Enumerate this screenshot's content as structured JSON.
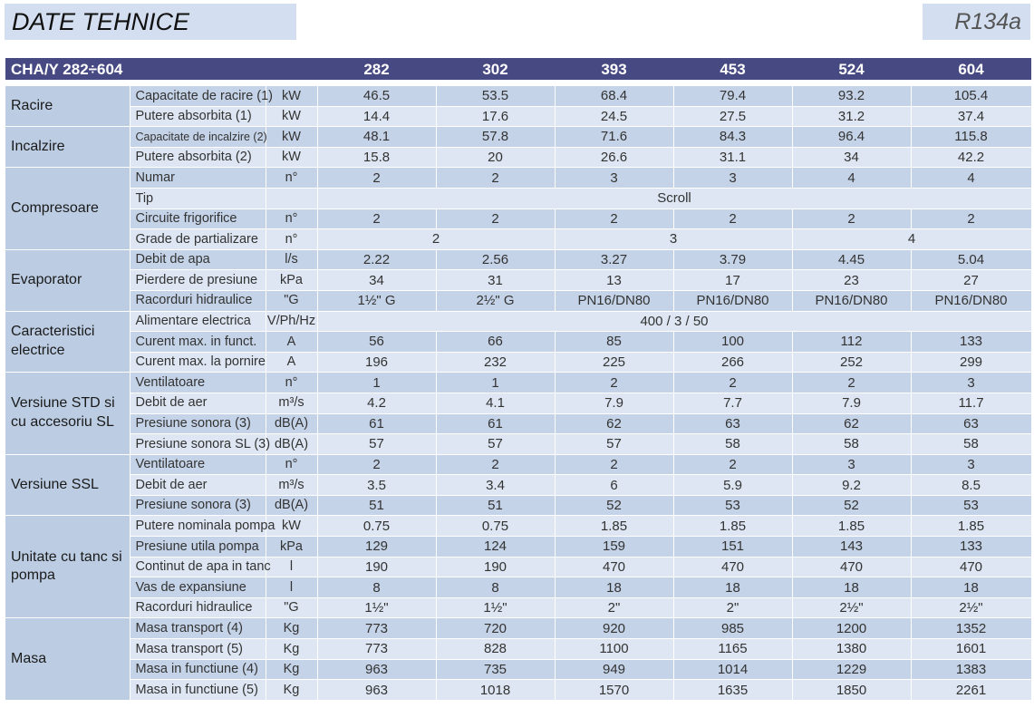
{
  "header": {
    "title": "DATE TEHNICE",
    "refrigerant": "R134a"
  },
  "table": {
    "model_label": "CHA/Y 282÷604",
    "models": [
      "282",
      "302",
      "393",
      "453",
      "524",
      "604"
    ],
    "r_racire": {
      "group": "Racire",
      "capacitate": {
        "label": "Capacitate de racire (1)",
        "unit": "kW",
        "values": [
          "46.5",
          "53.5",
          "68.4",
          "79.4",
          "93.2",
          "105.4"
        ]
      },
      "putere": {
        "label": "Putere absorbita (1)",
        "unit": "kW",
        "values": [
          "14.4",
          "17.6",
          "24.5",
          "27.5",
          "31.2",
          "37.4"
        ]
      }
    },
    "r_incalzire": {
      "group": "Incalzire",
      "capacitate": {
        "label": "Capacitate de incalzire (2)",
        "unit": "kW",
        "values": [
          "48.1",
          "57.8",
          "71.6",
          "84.3",
          "96.4",
          "115.8"
        ]
      },
      "putere": {
        "label": "Putere absorbita (2)",
        "unit": "kW",
        "values": [
          "15.8",
          "20",
          "26.6",
          "31.1",
          "34",
          "42.2"
        ]
      }
    },
    "r_compresoare": {
      "group": "Compresoare",
      "numar": {
        "label": "Numar",
        "unit": "n°",
        "values": [
          "2",
          "2",
          "3",
          "3",
          "4",
          "4"
        ]
      },
      "tip": {
        "label": "Tip",
        "unit": "",
        "value": "Scroll"
      },
      "circuite": {
        "label": "Circuite frigorifice",
        "unit": "n°",
        "values": [
          "2",
          "2",
          "2",
          "2",
          "2",
          "2"
        ]
      },
      "grade": {
        "label": "Grade de partializare",
        "unit": "n°",
        "values": [
          "2",
          "3",
          "4"
        ]
      }
    },
    "r_evaporator": {
      "group": "Evaporator",
      "debit": {
        "label": "Debit de apa",
        "unit": "l/s",
        "values": [
          "2.22",
          "2.56",
          "3.27",
          "3.79",
          "4.45",
          "5.04"
        ]
      },
      "pierdere": {
        "label": "Pierdere de presiune",
        "unit": "kPa",
        "values": [
          "34",
          "31",
          "13",
          "17",
          "23",
          "27"
        ]
      },
      "racorduri": {
        "label": "Racorduri hidraulice",
        "unit": "\"G",
        "values": [
          "1½\" G",
          "2½\" G",
          "PN16/DN80",
          "PN16/DN80",
          "PN16/DN80",
          "PN16/DN80"
        ]
      }
    },
    "r_electrice": {
      "group": "Caracteristici electrice",
      "alimentare": {
        "label": "Alimentare electrica",
        "unit": "V/Ph/Hz",
        "value": "400 / 3 / 50"
      },
      "curent_funct": {
        "label": "Curent max. in funct.",
        "unit": "A",
        "values": [
          "56",
          "66",
          "85",
          "100",
          "112",
          "133"
        ]
      },
      "curent_pornire": {
        "label": "Curent max. la pornire",
        "unit": "A",
        "values": [
          "196",
          "232",
          "225",
          "266",
          "252",
          "299"
        ]
      }
    },
    "r_std": {
      "group": "Versiune STD si cu accesoriu SL",
      "ventilatoare": {
        "label": "Ventilatoare",
        "unit": "n°",
        "values": [
          "1",
          "1",
          "2",
          "2",
          "2",
          "3"
        ]
      },
      "debit_aer": {
        "label": "Debit de aer",
        "unit": "m³/s",
        "values": [
          "4.2",
          "4.1",
          "7.9",
          "7.7",
          "7.9",
          "11.7"
        ]
      },
      "sonora": {
        "label": "Presiune sonora (3)",
        "unit": "dB(A)",
        "values": [
          "61",
          "61",
          "62",
          "63",
          "62",
          "63"
        ]
      },
      "sonora_sl": {
        "label": "Presiune sonora SL (3)",
        "unit": "dB(A)",
        "values": [
          "57",
          "57",
          "57",
          "58",
          "58",
          "58"
        ]
      }
    },
    "r_ssl": {
      "group": "Versiune SSL",
      "ventilatoare": {
        "label": "Ventilatoare",
        "unit": "n°",
        "values": [
          "2",
          "2",
          "2",
          "2",
          "3",
          "3"
        ]
      },
      "debit_aer": {
        "label": "Debit de aer",
        "unit": "m³/s",
        "values": [
          "3.5",
          "3.4",
          "6",
          "5.9",
          "9.2",
          "8.5"
        ]
      },
      "sonora": {
        "label": "Presiune sonora (3)",
        "unit": "dB(A)",
        "values": [
          "51",
          "51",
          "52",
          "53",
          "52",
          "53"
        ]
      }
    },
    "r_pompa": {
      "group": "Unitate cu tanc si pompa",
      "putere": {
        "label": "Putere nominala pompa",
        "unit": "kW",
        "values": [
          "0.75",
          "0.75",
          "1.85",
          "1.85",
          "1.85",
          "1.85"
        ]
      },
      "presiune": {
        "label": "Presiune utila pompa",
        "unit": "kPa",
        "values": [
          "129",
          "124",
          "159",
          "151",
          "143",
          "133"
        ]
      },
      "continut": {
        "label": "Continut de apa in tanc",
        "unit": "l",
        "values": [
          "190",
          "190",
          "470",
          "470",
          "470",
          "470"
        ]
      },
      "vas": {
        "label": "Vas de expansiune",
        "unit": "l",
        "values": [
          "8",
          "8",
          "18",
          "18",
          "18",
          "18"
        ]
      },
      "racorduri": {
        "label": "Racorduri hidraulice",
        "unit": "\"G",
        "values": [
          "1½\"",
          "1½\"",
          "2\"",
          "2\"",
          "2½\"",
          "2½\""
        ]
      }
    },
    "r_masa": {
      "group": "Masa",
      "transport4": {
        "label": "Masa transport (4)",
        "unit": "Kg",
        "values": [
          "773",
          "720",
          "920",
          "985",
          "1200",
          "1352"
        ]
      },
      "transport5": {
        "label": "Masa transport (5)",
        "unit": "Kg",
        "values": [
          "773",
          "828",
          "1100",
          "1165",
          "1380",
          "1601"
        ]
      },
      "functiune4": {
        "label": "Masa in functiune (4)",
        "unit": "Kg",
        "values": [
          "963",
          "735",
          "949",
          "1014",
          "1229",
          "1383"
        ]
      },
      "functiune5": {
        "label": "Masa in functiune (5)",
        "unit": "Kg",
        "values": [
          "963",
          "1018",
          "1570",
          "1635",
          "1850",
          "2261"
        ]
      }
    }
  }
}
